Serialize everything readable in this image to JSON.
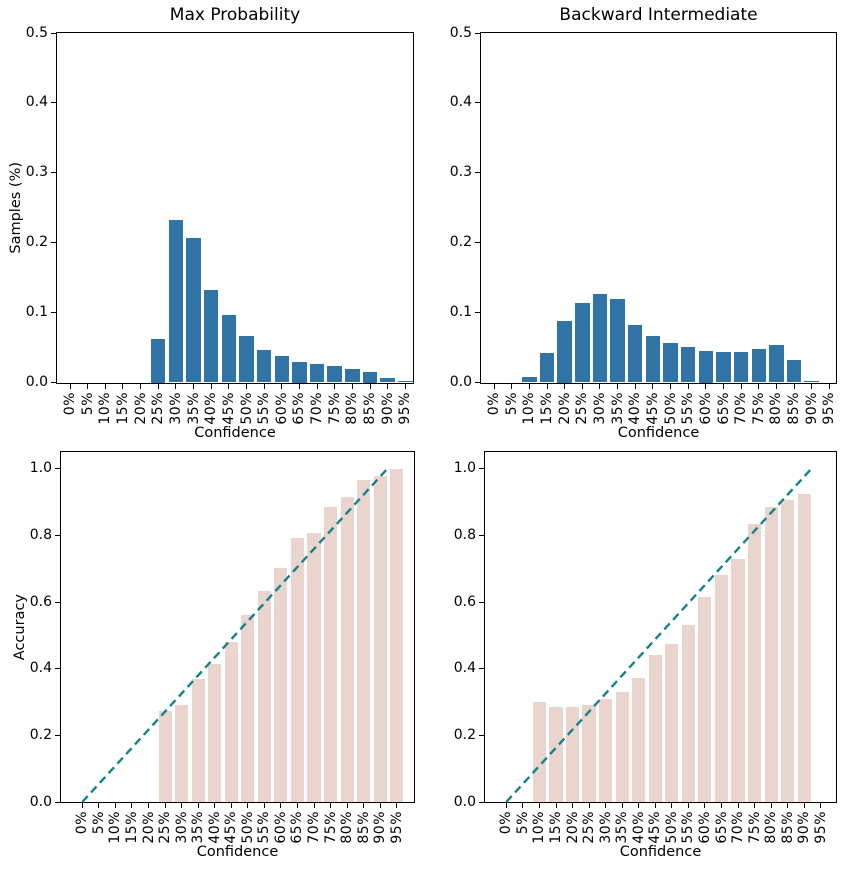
{
  "figure": {
    "background": "#ffffff"
  },
  "colors": {
    "histogram_bar": "#2f74a5",
    "accuracy_bar": "#e9d4ce",
    "diagonal_line": "#12838a",
    "axis": "#000000"
  },
  "chart_data": [
    {
      "type": "bar",
      "id": "max-probability-samples",
      "title": "Max Probability",
      "xlabel": "Confidence",
      "ylabel": "Samples (%)",
      "categories": [
        "0%",
        "5%",
        "10%",
        "15%",
        "20%",
        "25%",
        "30%",
        "35%",
        "40%",
        "45%",
        "50%",
        "55%",
        "60%",
        "65%",
        "70%",
        "75%",
        "80%",
        "85%",
        "90%",
        "95%"
      ],
      "values": [
        0,
        0,
        0,
        0,
        0,
        0.063,
        0.233,
        0.207,
        0.132,
        0.096,
        0.067,
        0.047,
        0.038,
        0.03,
        0.026,
        0.024,
        0.019,
        0.015,
        0.006,
        0.002
      ],
      "ylim": [
        0,
        0.5
      ],
      "yticks": [
        0.0,
        0.1,
        0.2,
        0.3,
        0.4,
        0.5
      ],
      "yticklabels": [
        "0.0",
        "0.1",
        "0.2",
        "0.3",
        "0.4",
        "0.5"
      ],
      "grid": false,
      "legend": null,
      "bar_color": "histogram_bar",
      "diagonal": false
    },
    {
      "type": "bar",
      "id": "backward-intermediate-samples",
      "title": "Backward Intermediate",
      "xlabel": "Confidence",
      "ylabel": "",
      "categories": [
        "0%",
        "5%",
        "10%",
        "15%",
        "20%",
        "25%",
        "30%",
        "35%",
        "40%",
        "45%",
        "50%",
        "55%",
        "60%",
        "65%",
        "70%",
        "75%",
        "80%",
        "85%",
        "90%",
        "95%"
      ],
      "values": [
        0,
        0,
        0.008,
        0.042,
        0.088,
        0.114,
        0.127,
        0.12,
        0.082,
        0.066,
        0.056,
        0.051,
        0.045,
        0.043,
        0.043,
        0.048,
        0.054,
        0.032,
        0.002,
        0
      ],
      "ylim": [
        0,
        0.5
      ],
      "yticks": [
        0.0,
        0.1,
        0.2,
        0.3,
        0.4,
        0.5
      ],
      "yticklabels": [
        "0.0",
        "0.1",
        "0.2",
        "0.3",
        "0.4",
        "0.5"
      ],
      "grid": false,
      "legend": null,
      "bar_color": "histogram_bar",
      "diagonal": false
    },
    {
      "type": "bar",
      "id": "max-probability-accuracy",
      "title": "",
      "xlabel": "Confidence",
      "ylabel": "Accuracy",
      "categories": [
        "0%",
        "5%",
        "10%",
        "15%",
        "20%",
        "25%",
        "30%",
        "35%",
        "40%",
        "45%",
        "50%",
        "55%",
        "60%",
        "65%",
        "70%",
        "75%",
        "80%",
        "85%",
        "90%",
        "95%"
      ],
      "values": [
        0,
        0,
        0,
        0,
        0,
        0.272,
        0.292,
        0.37,
        0.413,
        0.479,
        0.56,
        0.633,
        0.702,
        0.793,
        0.808,
        0.885,
        0.915,
        0.965,
        0.978,
        1.0
      ],
      "ylim": [
        0,
        1.05
      ],
      "yticks": [
        0.0,
        0.2,
        0.4,
        0.6,
        0.8,
        1.0
      ],
      "yticklabels": [
        "0.0",
        "0.2",
        "0.4",
        "0.6",
        "0.8",
        "1.0"
      ],
      "grid": false,
      "legend": null,
      "bar_color": "accuracy_bar",
      "diagonal": true,
      "diagonal_points": {
        "x": [
          "0%",
          "95%"
        ],
        "y": [
          0.0,
          1.0
        ]
      }
    },
    {
      "type": "bar",
      "id": "backward-intermediate-accuracy",
      "title": "",
      "xlabel": "Confidence",
      "ylabel": "",
      "categories": [
        "0%",
        "5%",
        "10%",
        "15%",
        "20%",
        "25%",
        "30%",
        "35%",
        "40%",
        "45%",
        "50%",
        "55%",
        "60%",
        "65%",
        "70%",
        "75%",
        "80%",
        "85%",
        "90%",
        "95%"
      ],
      "values": [
        0,
        0,
        0.3,
        0.285,
        0.285,
        0.29,
        0.31,
        0.33,
        0.372,
        0.442,
        0.475,
        0.532,
        0.614,
        0.68,
        0.73,
        0.833,
        0.886,
        0.905,
        0.925,
        0
      ],
      "ylim": [
        0,
        1.05
      ],
      "yticks": [
        0.0,
        0.2,
        0.4,
        0.6,
        0.8,
        1.0
      ],
      "yticklabels": [
        "0.0",
        "0.2",
        "0.4",
        "0.6",
        "0.8",
        "1.0"
      ],
      "grid": false,
      "legend": null,
      "bar_color": "accuracy_bar",
      "diagonal": true,
      "diagonal_points": {
        "x": [
          "0%",
          "95%"
        ],
        "y": [
          0.0,
          1.0
        ]
      }
    }
  ]
}
